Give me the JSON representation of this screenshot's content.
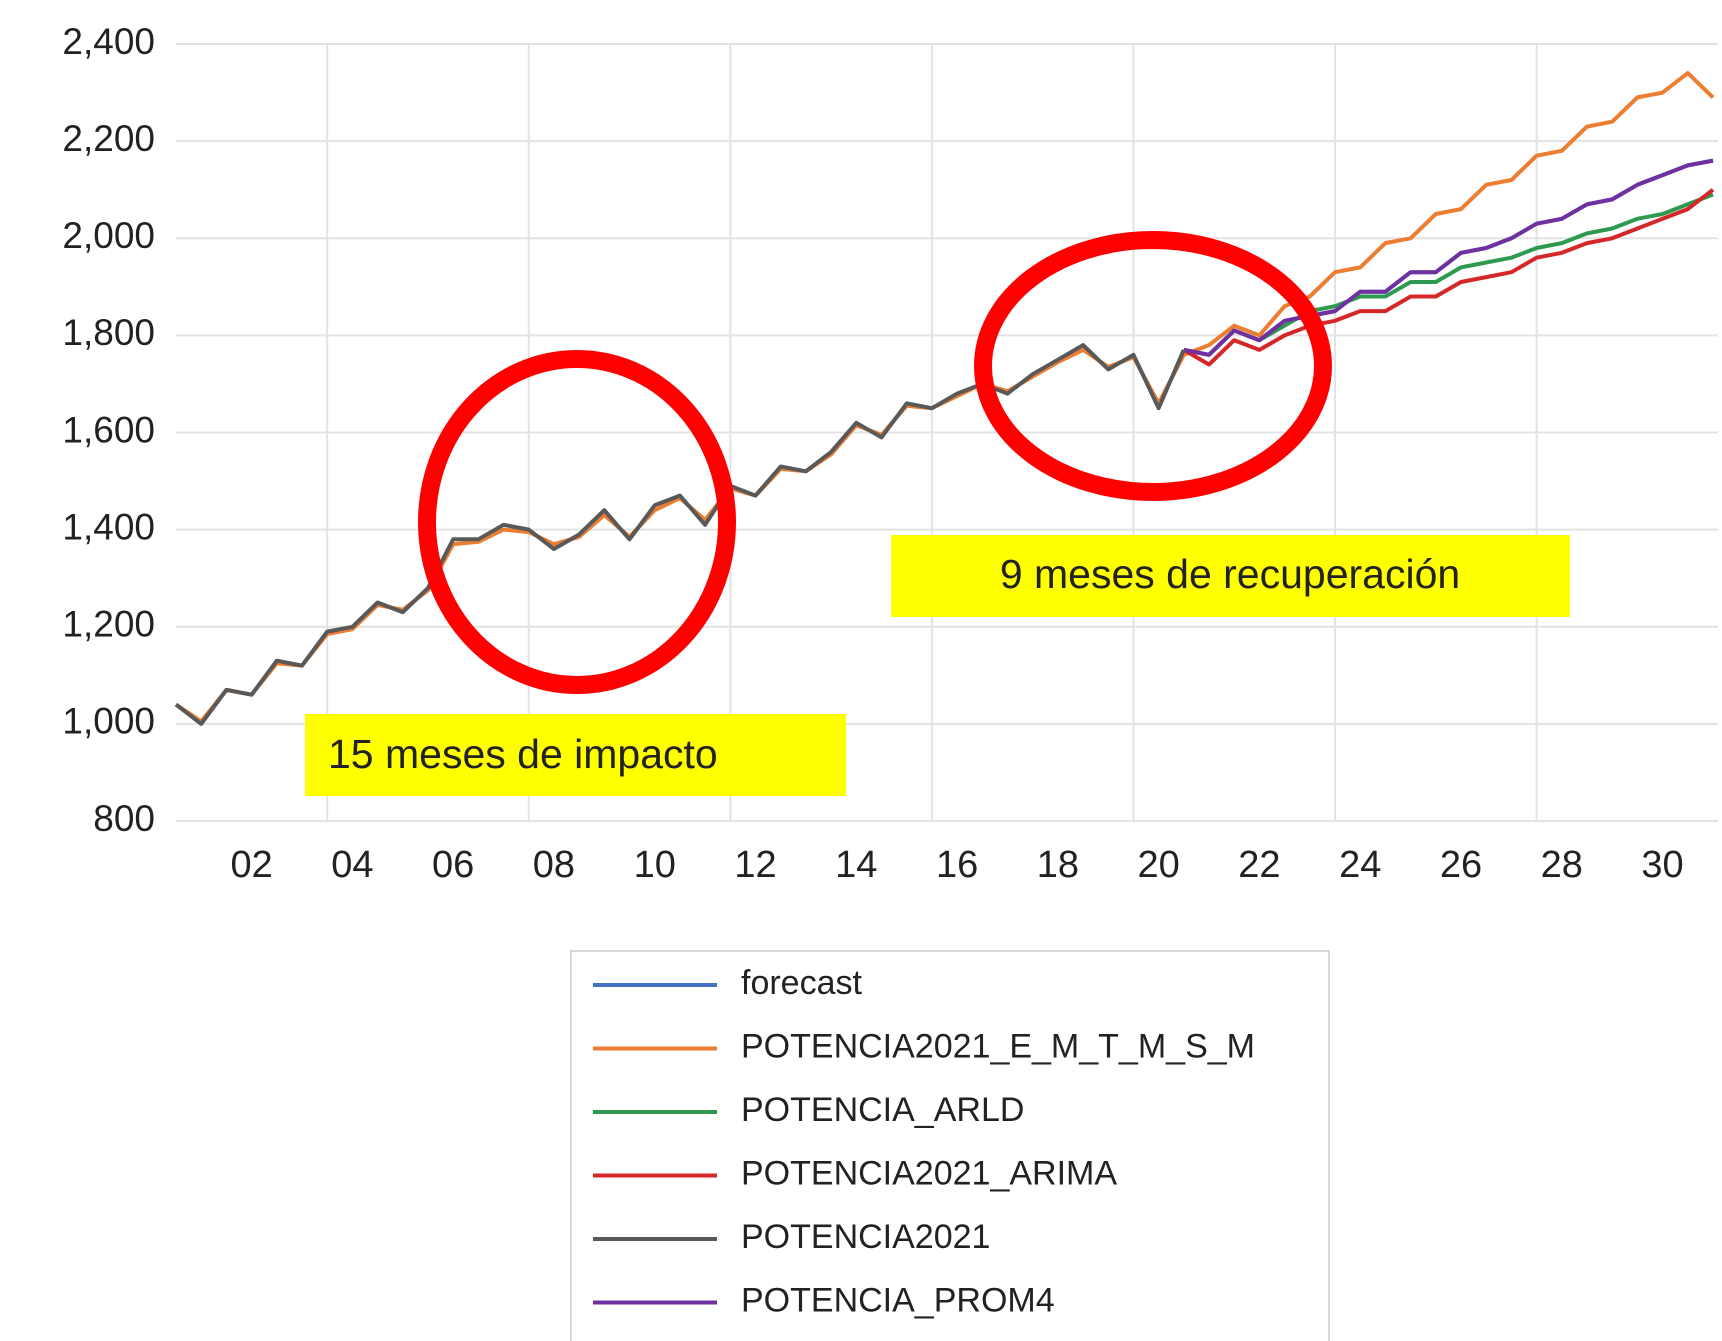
{
  "chart_data": {
    "type": "line",
    "x": [
      2001.0,
      2001.5,
      2002.0,
      2002.5,
      2003.0,
      2003.5,
      2004.0,
      2004.5,
      2005.0,
      2005.5,
      2006.0,
      2006.5,
      2007.0,
      2007.5,
      2008.0,
      2008.5,
      2009.0,
      2009.5,
      2010.0,
      2010.5,
      2011.0,
      2011.5,
      2012.0,
      2012.5,
      2013.0,
      2013.5,
      2014.0,
      2014.5,
      2015.0,
      2015.5,
      2016.0,
      2016.5,
      2017.0,
      2017.5,
      2018.0,
      2018.5,
      2019.0,
      2019.5,
      2020.0,
      2020.5,
      2021.0,
      2021.5,
      2022.0,
      2022.5,
      2023.0,
      2023.5,
      2024.0,
      2024.5,
      2025.0,
      2025.5,
      2026.0,
      2026.5,
      2027.0,
      2027.5,
      2028.0,
      2028.5,
      2029.0,
      2029.5,
      2030.0,
      2030.5,
      2031.0,
      2031.5
    ],
    "series": [
      {
        "name": "forecast",
        "color": "#4472c4",
        "values": [
          null,
          null,
          null,
          null,
          null,
          null,
          null,
          null,
          null,
          null,
          null,
          null,
          null,
          null,
          null,
          null,
          null,
          null,
          null,
          null,
          null,
          null,
          null,
          null,
          null,
          null,
          null,
          null,
          null,
          null,
          null,
          null,
          null,
          null,
          null,
          null,
          null,
          null,
          null,
          null,
          1770,
          1760,
          1810,
          1790,
          1830,
          1840,
          1850,
          1890,
          1890,
          1930,
          1930,
          1970,
          1980,
          2000,
          2030,
          2040,
          2070,
          2080,
          2110,
          2130,
          2150,
          2160
        ]
      },
      {
        "name": "POTENCIA2021_E_M_T_M_S_M",
        "color": "#ed7d31",
        "values": [
          1040,
          1005,
          1070,
          1060,
          1125,
          1120,
          1185,
          1195,
          1245,
          1235,
          1275,
          1370,
          1375,
          1400,
          1395,
          1370,
          1385,
          1430,
          1385,
          1440,
          1465,
          1420,
          1485,
          1470,
          1525,
          1520,
          1555,
          1615,
          1595,
          1655,
          1650,
          1675,
          1700,
          1685,
          1715,
          1745,
          1770,
          1735,
          1755,
          1660,
          1760,
          1780,
          1820,
          1800,
          1860,
          1880,
          1930,
          1940,
          1990,
          2000,
          2050,
          2060,
          2110,
          2120,
          2170,
          2180,
          2230,
          2240,
          2290,
          2300,
          2340,
          2290
        ]
      },
      {
        "name": "POTENCIA_ARLD",
        "color": "#2e9a4f",
        "values": [
          null,
          null,
          null,
          null,
          null,
          null,
          null,
          null,
          null,
          null,
          null,
          null,
          null,
          null,
          null,
          null,
          null,
          null,
          null,
          null,
          null,
          null,
          null,
          null,
          null,
          null,
          null,
          null,
          null,
          null,
          null,
          null,
          null,
          null,
          null,
          null,
          null,
          null,
          null,
          null,
          1770,
          1760,
          1810,
          1790,
          1820,
          1850,
          1860,
          1880,
          1880,
          1910,
          1910,
          1940,
          1950,
          1960,
          1980,
          1990,
          2010,
          2020,
          2040,
          2050,
          2070,
          2090
        ]
      },
      {
        "name": "POTENCIA2021_ARIMA",
        "color": "#d62728",
        "values": [
          null,
          null,
          null,
          null,
          null,
          null,
          null,
          null,
          null,
          null,
          null,
          null,
          null,
          null,
          null,
          null,
          null,
          null,
          null,
          null,
          null,
          null,
          null,
          null,
          null,
          null,
          null,
          null,
          null,
          null,
          null,
          null,
          null,
          null,
          null,
          null,
          null,
          null,
          null,
          null,
          1770,
          1740,
          1790,
          1770,
          1800,
          1820,
          1830,
          1850,
          1850,
          1880,
          1880,
          1910,
          1920,
          1930,
          1960,
          1970,
          1990,
          2000,
          2020,
          2040,
          2060,
          2100
        ]
      },
      {
        "name": "POTENCIA2021",
        "color": "#595959",
        "values": [
          1040,
          1000,
          1070,
          1060,
          1130,
          1120,
          1190,
          1200,
          1250,
          1230,
          1280,
          1380,
          1380,
          1410,
          1400,
          1360,
          1390,
          1440,
          1380,
          1450,
          1470,
          1410,
          1490,
          1470,
          1530,
          1520,
          1560,
          1620,
          1590,
          1660,
          1650,
          1680,
          1700,
          1680,
          1720,
          1750,
          1780,
          1730,
          1760,
          1650,
          1770,
          null,
          null,
          null,
          null,
          null,
          null,
          null,
          null,
          null,
          null,
          null,
          null,
          null,
          null,
          null,
          null,
          null,
          null,
          null,
          null,
          null
        ]
      },
      {
        "name": "POTENCIA_PROM4",
        "color": "#7030a0",
        "values": [
          null,
          null,
          null,
          null,
          null,
          null,
          null,
          null,
          null,
          null,
          null,
          null,
          null,
          null,
          null,
          null,
          null,
          null,
          null,
          null,
          null,
          null,
          null,
          null,
          null,
          null,
          null,
          null,
          null,
          null,
          null,
          null,
          null,
          null,
          null,
          null,
          null,
          null,
          null,
          null,
          1770,
          1760,
          1810,
          1790,
          1830,
          1840,
          1850,
          1890,
          1890,
          1930,
          1930,
          1970,
          1980,
          2000,
          2030,
          2040,
          2070,
          2080,
          2110,
          2130,
          2150,
          2160
        ]
      }
    ],
    "xlim": [
      2001.0,
      2031.6
    ],
    "xticks": [
      {
        "value": 2002,
        "label": "02"
      },
      {
        "value": 2004,
        "label": "04"
      },
      {
        "value": 2006,
        "label": "06"
      },
      {
        "value": 2008,
        "label": "08"
      },
      {
        "value": 2010,
        "label": "10"
      },
      {
        "value": 2012,
        "label": "12"
      },
      {
        "value": 2014,
        "label": "14"
      },
      {
        "value": 2016,
        "label": "16"
      },
      {
        "value": 2018,
        "label": "18"
      },
      {
        "value": 2020,
        "label": "20"
      },
      {
        "value": 2022,
        "label": "22"
      },
      {
        "value": 2024,
        "label": "24"
      },
      {
        "value": 2026,
        "label": "26"
      },
      {
        "value": 2028,
        "label": "28"
      },
      {
        "value": 2030,
        "label": "30"
      }
    ],
    "ylim": [
      800,
      2400
    ],
    "yticks": [
      800,
      {
        "value": 1000,
        "label": "1,000"
      },
      {
        "value": 1200,
        "label": "1,200"
      },
      {
        "value": 1400,
        "label": "1,400"
      },
      {
        "value": 1600,
        "label": "1,600"
      },
      {
        "value": 1800,
        "label": "1,800"
      },
      {
        "value": 2000,
        "label": "2,000"
      },
      {
        "value": 2200,
        "label": "2,200"
      },
      {
        "value": 2400,
        "label": "2,400"
      }
    ],
    "grid": true,
    "legend": "bottom",
    "annotations": [
      "15 meses de impacto",
      "9 meses de recuperación"
    ]
  }
}
